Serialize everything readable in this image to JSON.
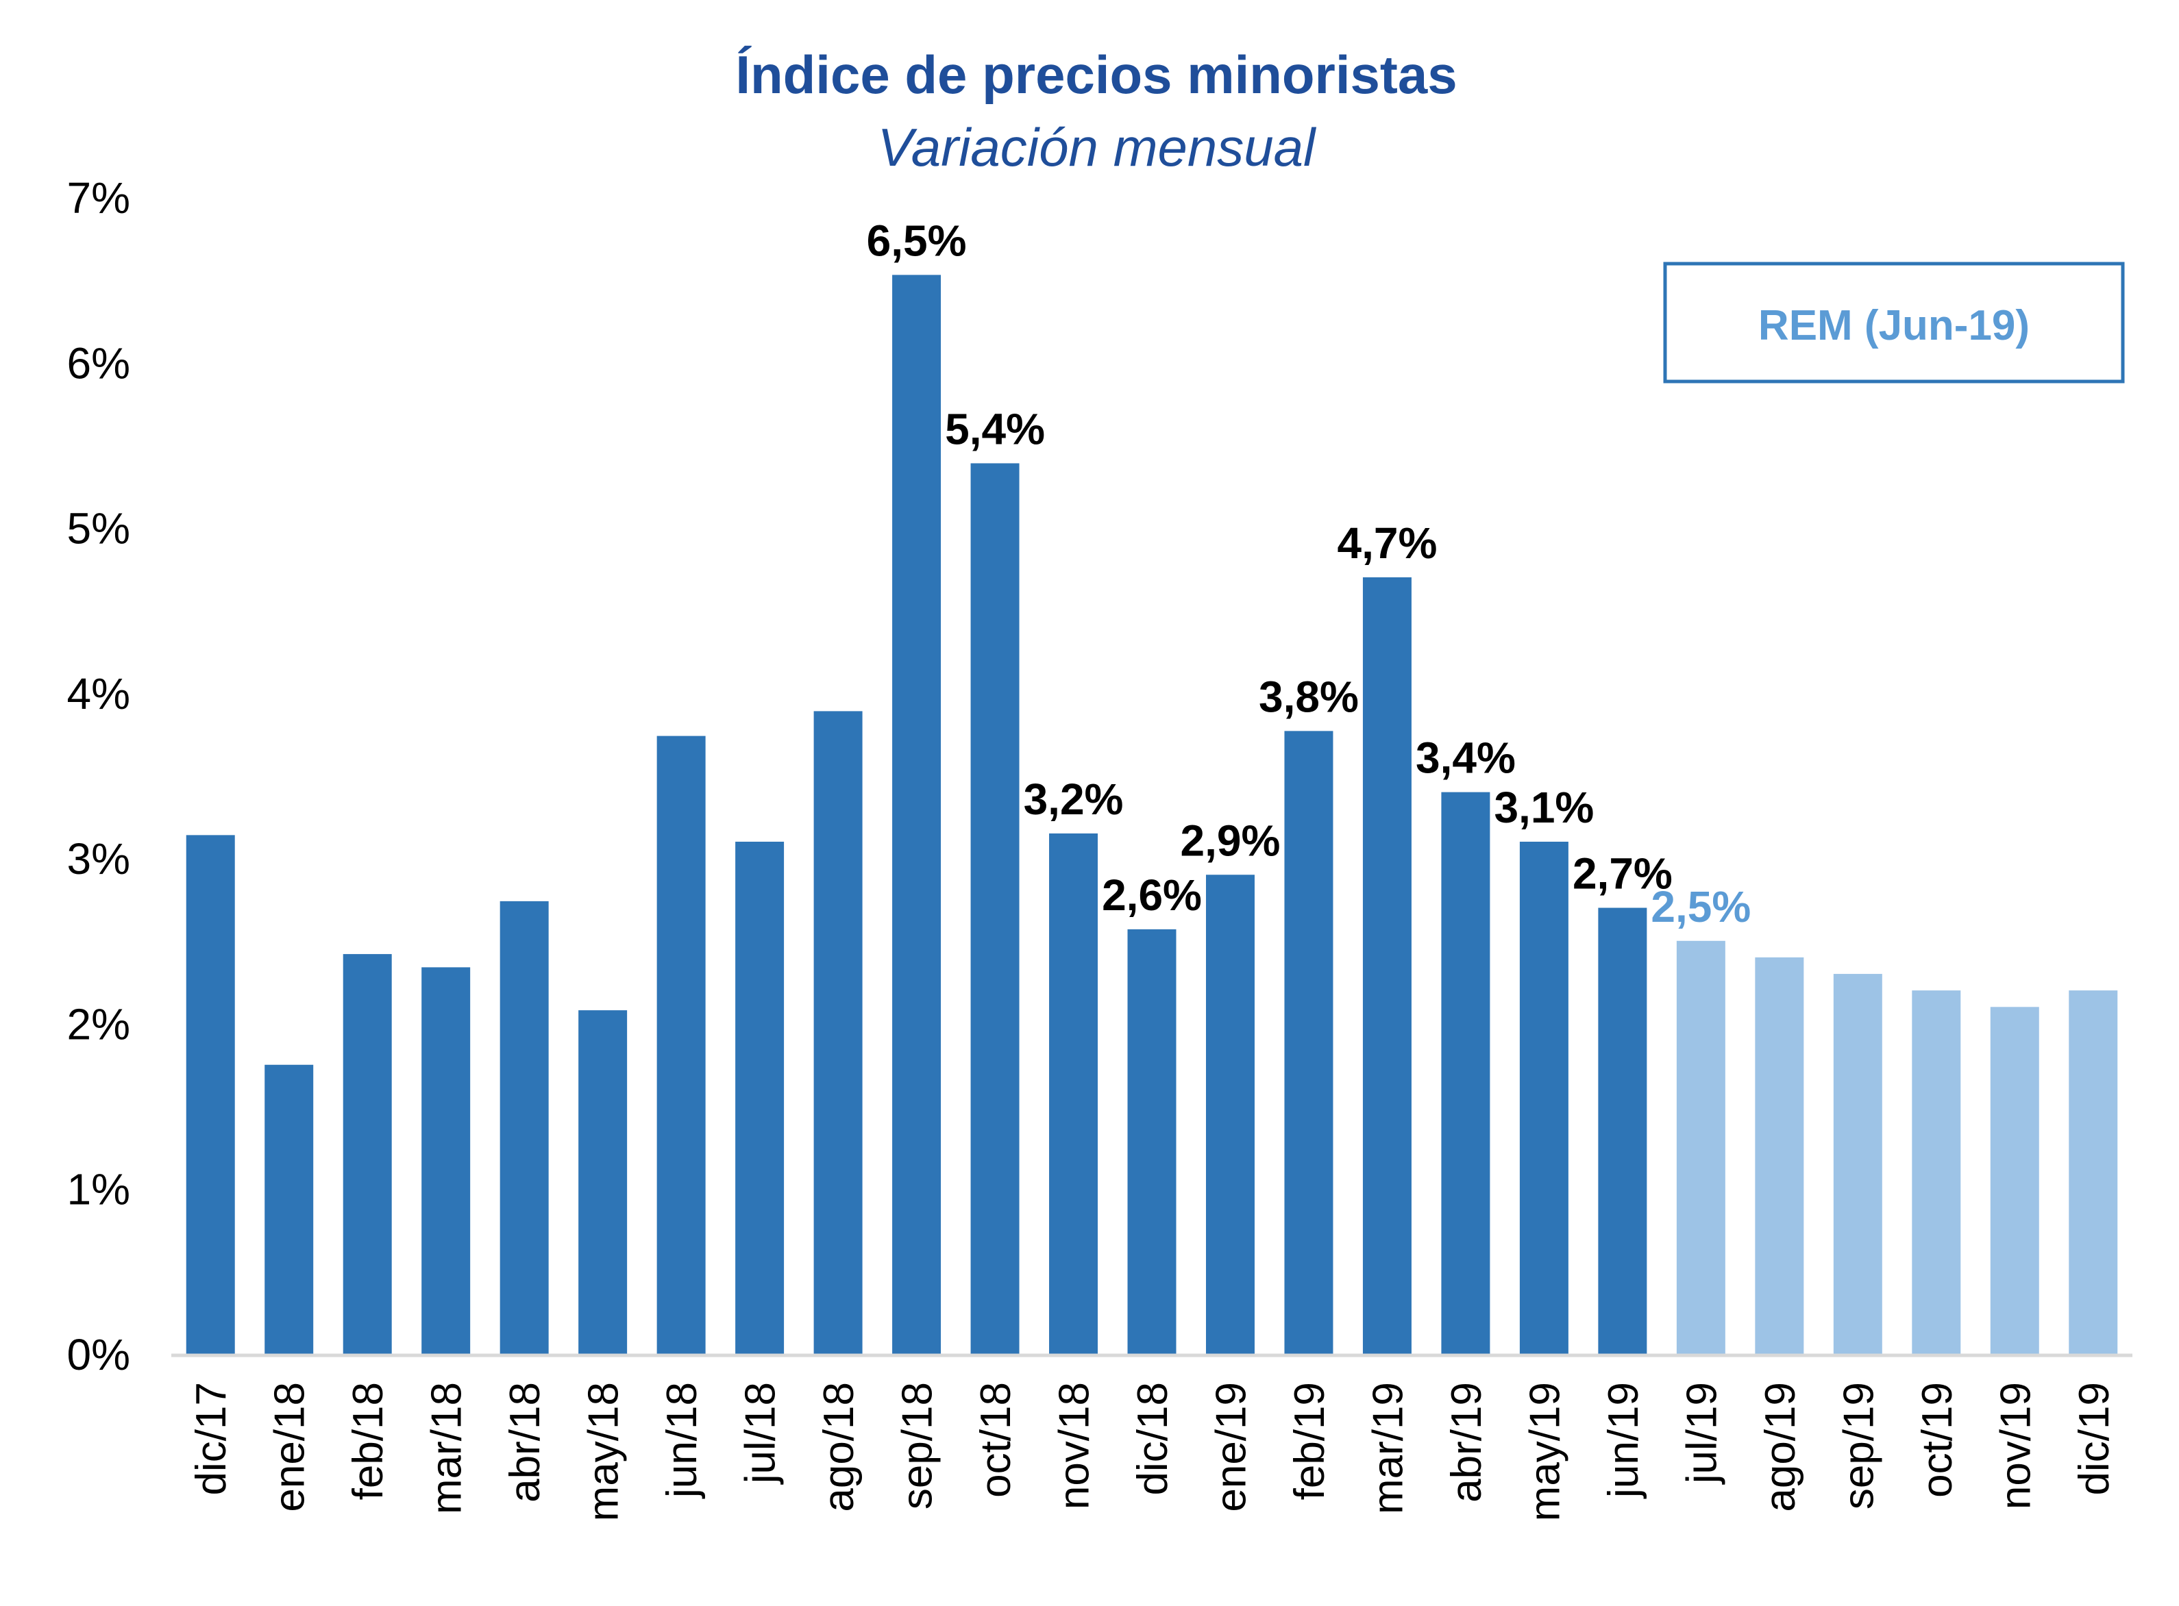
{
  "chart_data": {
    "type": "bar",
    "title": "Índice de precios minoristas",
    "subtitle": "Variación mensual",
    "xlabel": "",
    "ylabel": "",
    "ylim": [
      0,
      7
    ],
    "yticks": [
      "0%",
      "1%",
      "2%",
      "3%",
      "4%",
      "5%",
      "6%",
      "7%"
    ],
    "grid": false,
    "colors": {
      "actual": "#2e75b6",
      "forecast": "#9dc3e6",
      "title": "#1f4e9a",
      "axis": "#d9d9d9"
    },
    "categories": [
      "dic/17",
      "ene/18",
      "feb/18",
      "mar/18",
      "abr/18",
      "may/18",
      "jun/18",
      "jul/18",
      "ago/18",
      "sep/18",
      "oct/18",
      "nov/18",
      "dic/18",
      "ene/19",
      "feb/19",
      "mar/19",
      "abr/19",
      "may/19",
      "jun/19",
      "jul/19",
      "ago/19",
      "sep/19",
      "oct/19",
      "nov/19",
      "dic/19"
    ],
    "values": [
      3.14,
      1.75,
      2.42,
      2.34,
      2.74,
      2.08,
      3.74,
      3.1,
      3.89,
      6.53,
      5.39,
      3.15,
      2.57,
      2.9,
      3.77,
      4.7,
      3.4,
      3.1,
      2.7,
      2.5,
      2.4,
      2.3,
      2.2,
      2.1,
      2.2
    ],
    "forecast": [
      false,
      false,
      false,
      false,
      false,
      false,
      false,
      false,
      false,
      false,
      false,
      false,
      false,
      false,
      false,
      false,
      false,
      false,
      false,
      true,
      true,
      true,
      true,
      true,
      true
    ],
    "data_labels": [
      "",
      "",
      "",
      "",
      "",
      "",
      "",
      "",
      "",
      "6,5%",
      "5,4%",
      "3,2%",
      "2,6%",
      "2,9%",
      "3,8%",
      "4,7%",
      "3,4%",
      "3,1%",
      "2,7%",
      "2,5%",
      "",
      "",
      "",
      "",
      ""
    ],
    "legend": {
      "label": "REM (Jun-19)",
      "placement": "top-right"
    }
  }
}
